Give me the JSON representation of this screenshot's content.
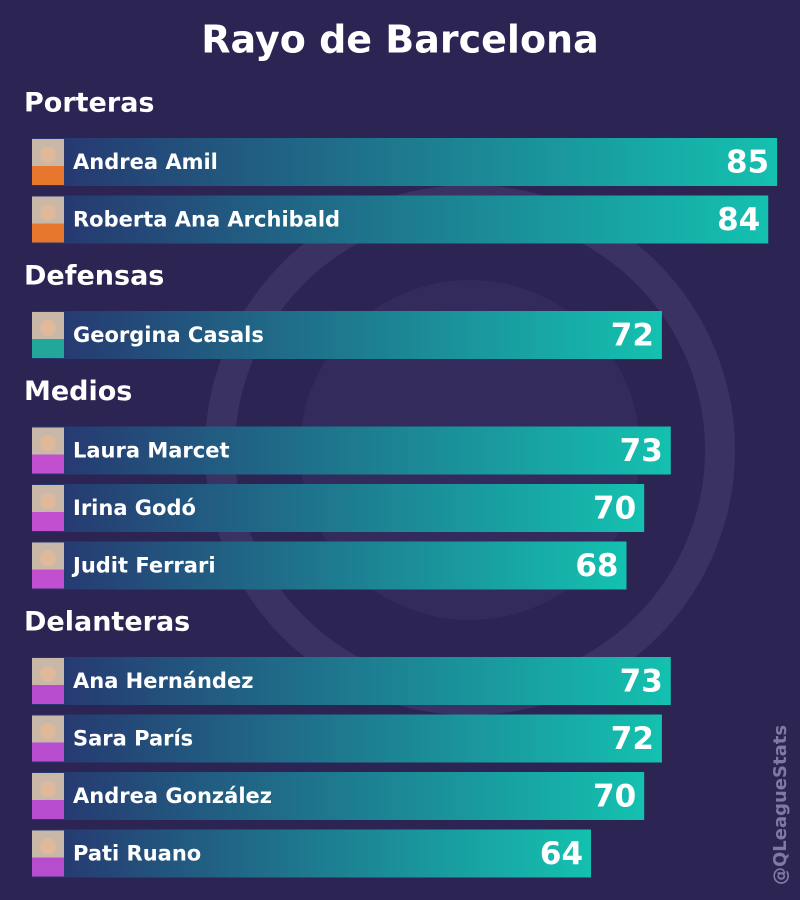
{
  "chart_data": {
    "type": "bar",
    "title": "Rayo de Barcelona",
    "groups": [
      {
        "name": "Porteras",
        "categories": [
          "Andrea Amil",
          "Roberta Ana Archibald"
        ],
        "values": [
          85,
          84
        ]
      },
      {
        "name": "Defensas",
        "categories": [
          "Georgina Casals"
        ],
        "values": [
          72
        ]
      },
      {
        "name": "Medios",
        "categories": [
          "Laura Marcet",
          "Irina Godó",
          "Judit Ferrari"
        ],
        "values": [
          73,
          70,
          68
        ]
      },
      {
        "name": "Delanteras",
        "categories": [
          "Ana Hernández",
          "Sara París",
          "Andrea González",
          "Pati Ruano"
        ],
        "values": [
          73,
          72,
          70,
          64
        ]
      }
    ],
    "watermark": "@QLeagueStats"
  }
}
